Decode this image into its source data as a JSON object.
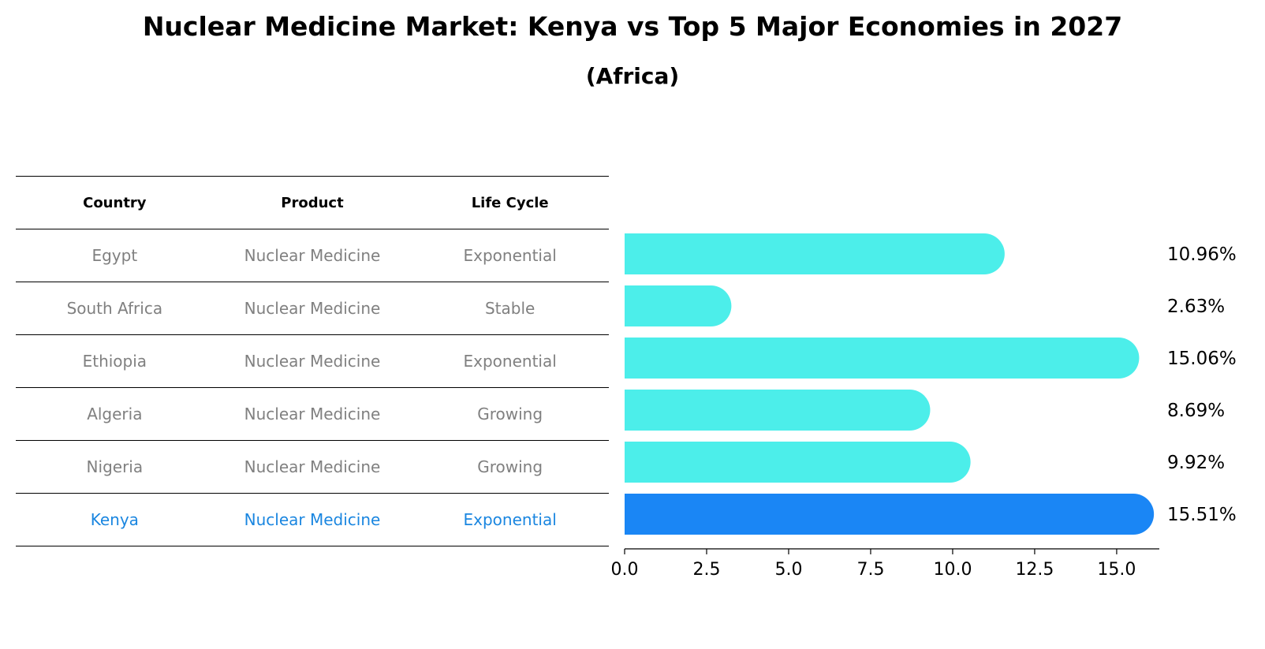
{
  "chart_data": {
    "type": "bar",
    "orientation": "horizontal",
    "title": "Nuclear Medicine Market: Kenya vs Top 5 Major Economies in 2027",
    "subtitle": "(Africa)",
    "columns": [
      "Country",
      "Product",
      "Life Cycle"
    ],
    "rows": [
      {
        "country": "Egypt",
        "product": "Nuclear Medicine",
        "life_cycle": "Exponential",
        "value": 10.96,
        "label": "10.96%"
      },
      {
        "country": "South Africa",
        "product": "Nuclear Medicine",
        "life_cycle": "Stable",
        "value": 2.63,
        "label": "2.63%"
      },
      {
        "country": "Ethiopia",
        "product": "Nuclear Medicine",
        "life_cycle": "Exponential",
        "value": 15.06,
        "label": "15.06%"
      },
      {
        "country": "Algeria",
        "product": "Nuclear Medicine",
        "life_cycle": "Growing",
        "value": 8.69,
        "label": "8.69%"
      },
      {
        "country": "Nigeria",
        "product": "Nuclear Medicine",
        "life_cycle": "Growing",
        "value": 9.92,
        "label": "9.92%"
      },
      {
        "country": "Kenya",
        "product": "Nuclear Medicine",
        "life_cycle": "Exponential",
        "value": 15.51,
        "label": "15.51%",
        "highlight": true
      }
    ],
    "xlim": [
      0,
      16.3
    ],
    "xticks": [
      0.0,
      2.5,
      5.0,
      7.5,
      10.0,
      12.5,
      15.0
    ],
    "xtick_labels": [
      "0.0",
      "2.5",
      "5.0",
      "7.5",
      "10.0",
      "12.5",
      "15.0"
    ],
    "colors": {
      "bar": "#4ceeea",
      "highlight_bar": "#1a86f5",
      "highlight_text": "#1a86e0",
      "muted_text": "#808080"
    }
  }
}
